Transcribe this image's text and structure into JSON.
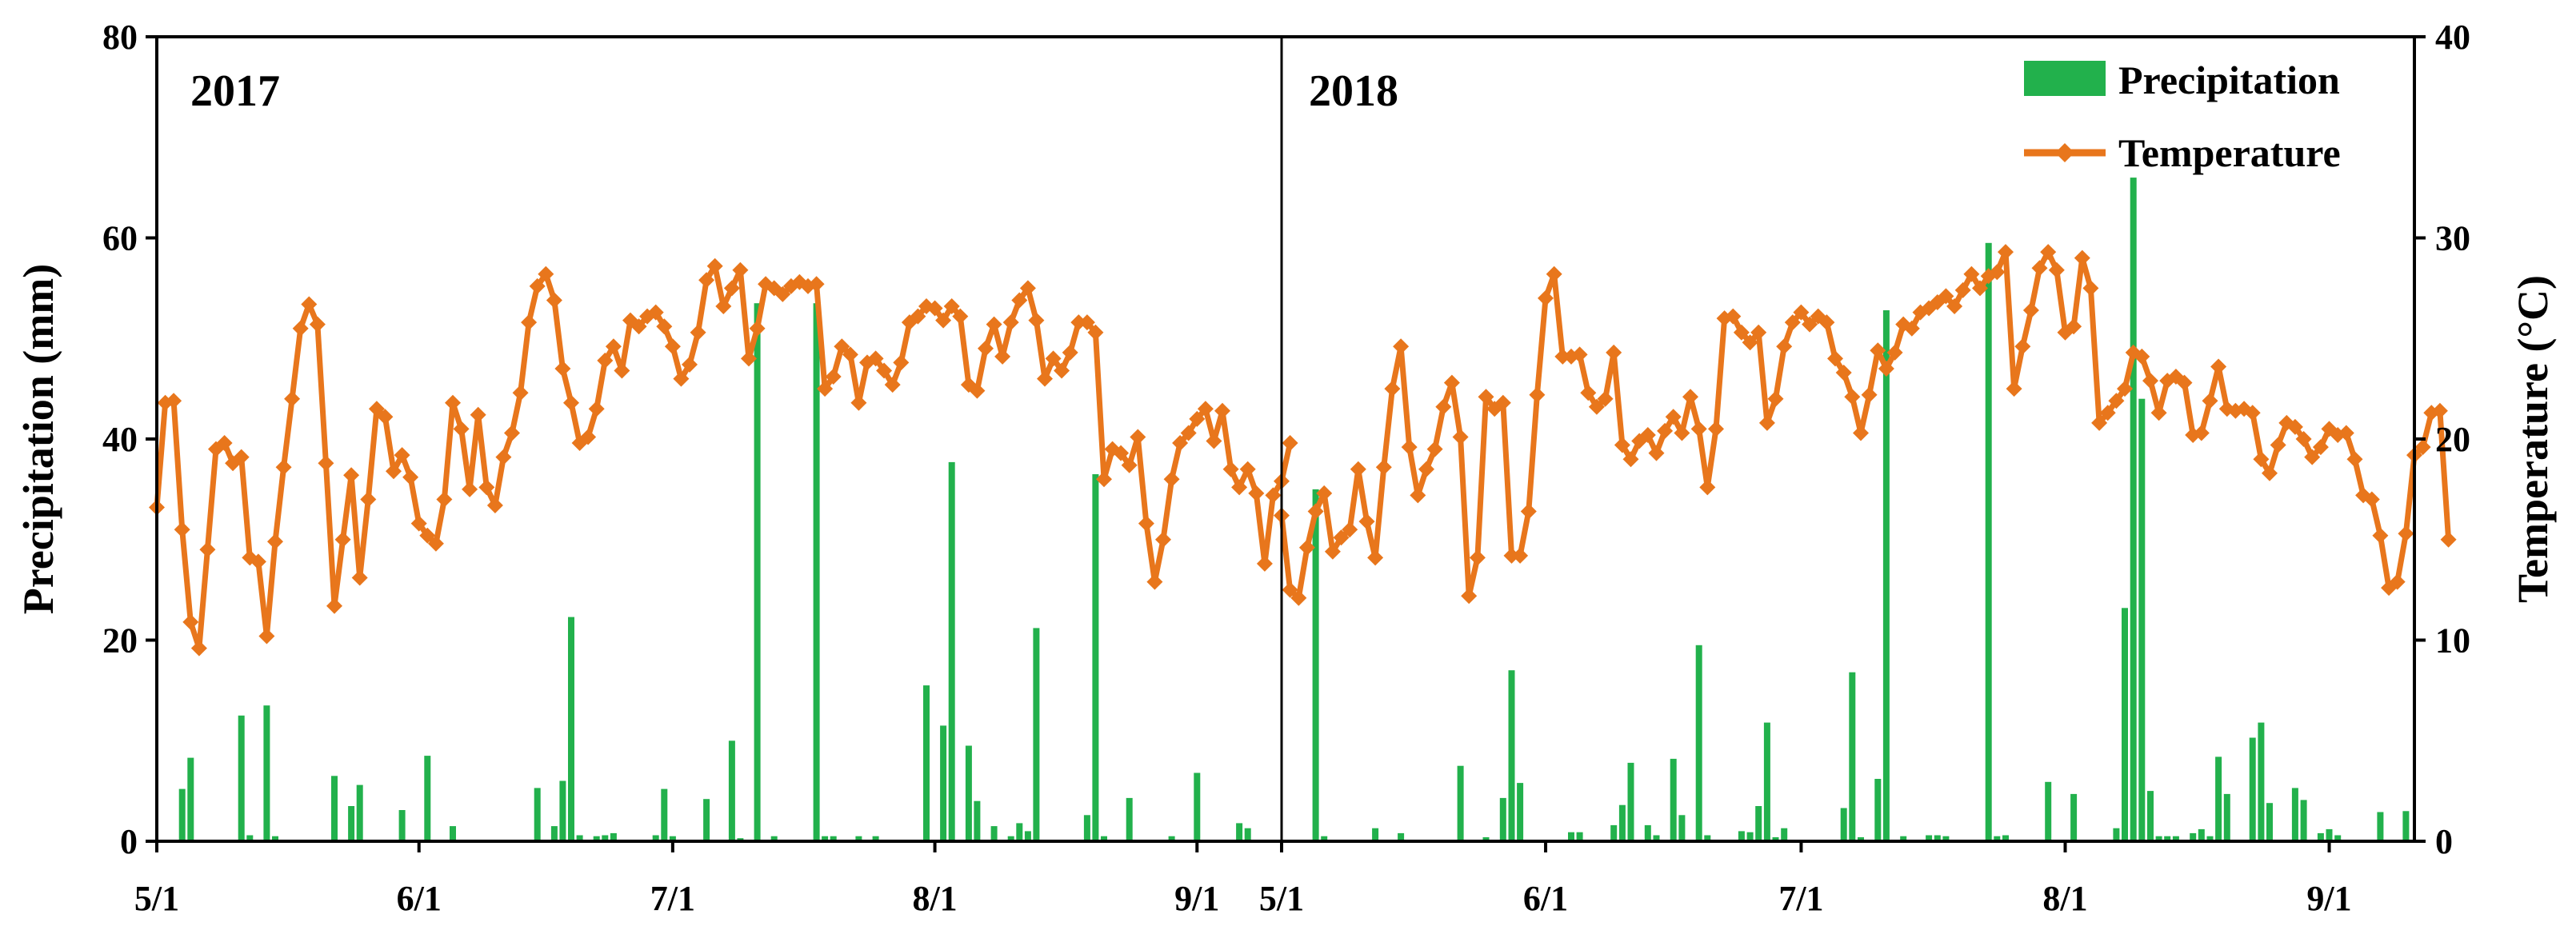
{
  "chart_data": {
    "type": "bar+line",
    "left_axis": {
      "label": "Precipitation (mm)",
      "ylim": [
        0,
        80
      ],
      "ticks": [
        "0",
        "20",
        "40",
        "60",
        "80"
      ]
    },
    "right_axis": {
      "label": "Temperature (°C)",
      "ylim": [
        0,
        40
      ],
      "ticks": [
        "0",
        "10",
        "20",
        "30",
        "40"
      ]
    },
    "legend": {
      "placement": "top-right",
      "precipitation": "Precipitation",
      "temperature": "Temperature"
    },
    "colors": {
      "precipitation": "#22b14c",
      "temperature": "#e8761c"
    },
    "panels": [
      {
        "year_label": "2017",
        "x_ticks": [
          "5/1",
          "6/1",
          "7/1",
          "8/1",
          "9/1"
        ],
        "x_range_days": [
          0,
          133
        ],
        "precipitation": [
          [
            3,
            5.2
          ],
          [
            4,
            8.3
          ],
          [
            10,
            12.5
          ],
          [
            11,
            0.6
          ],
          [
            13,
            13.5
          ],
          [
            14,
            0.5
          ],
          [
            21,
            6.5
          ],
          [
            23,
            3.5
          ],
          [
            24,
            5.6
          ],
          [
            29,
            3.1
          ],
          [
            32,
            8.5
          ],
          [
            35,
            1.5
          ],
          [
            45,
            5.3
          ],
          [
            47,
            1.5
          ],
          [
            48,
            6.0
          ],
          [
            49,
            22.3
          ],
          [
            50,
            0.6
          ],
          [
            52,
            0.5
          ],
          [
            53,
            0.6
          ],
          [
            54,
            0.8
          ],
          [
            59,
            0.6
          ],
          [
            60,
            5.2
          ],
          [
            61,
            0.5
          ],
          [
            65,
            4.2
          ],
          [
            68,
            10.0
          ],
          [
            69,
            0.3
          ],
          [
            71,
            53.5
          ],
          [
            73,
            0.5
          ],
          [
            78,
            53.5
          ],
          [
            79,
            0.5
          ],
          [
            80,
            0.5
          ],
          [
            83,
            0.5
          ],
          [
            85,
            0.5
          ],
          [
            91,
            15.5
          ],
          [
            93,
            11.5
          ],
          [
            94,
            37.7
          ],
          [
            96,
            9.5
          ],
          [
            97,
            4.0
          ],
          [
            99,
            1.5
          ],
          [
            101,
            0.5
          ],
          [
            102,
            1.8
          ],
          [
            103,
            1.0
          ],
          [
            104,
            21.2
          ],
          [
            110,
            2.6
          ],
          [
            111,
            36.5
          ],
          [
            112,
            0.5
          ],
          [
            115,
            4.3
          ],
          [
            120,
            0.5
          ],
          [
            123,
            6.8
          ],
          [
            128,
            1.8
          ],
          [
            129,
            1.3
          ]
        ],
        "temperature": [
          16.6,
          21.8,
          21.9,
          15.5,
          10.9,
          9.6,
          14.5,
          19.5,
          19.8,
          18.8,
          19.1,
          14.1,
          13.9,
          10.2,
          14.9,
          18.6,
          22.0,
          25.5,
          26.7,
          25.7,
          18.8,
          11.7,
          15.0,
          18.2,
          13.1,
          17.0,
          21.5,
          21.1,
          18.4,
          19.2,
          18.1,
          15.8,
          15.2,
          14.8,
          17.0,
          21.8,
          20.5,
          17.5,
          21.2,
          17.6,
          16.7,
          19.1,
          20.3,
          22.3,
          25.8,
          27.6,
          28.2,
          26.9,
          23.5,
          21.8,
          19.8,
          20.1,
          21.5,
          23.9,
          24.6,
          23.4,
          25.9,
          25.6,
          26.1,
          26.3,
          25.6,
          24.6,
          23.0,
          23.7,
          25.3,
          27.9,
          28.6,
          26.6,
          27.5,
          28.4,
          24.0,
          25.5,
          27.7,
          27.5,
          27.2,
          27.6,
          27.8,
          27.6,
          27.7,
          22.5,
          23.1,
          24.6,
          24.2,
          21.8,
          23.8,
          24.0,
          23.4,
          22.7,
          23.8,
          25.8,
          26.1,
          26.6,
          26.5,
          25.9,
          26.6,
          26.1,
          22.7,
          22.4,
          24.5,
          25.7,
          24.1,
          25.8,
          26.9,
          27.5,
          25.9,
          23.0,
          24.0,
          23.4,
          24.3,
          25.8,
          25.8,
          25.3,
          18.0,
          19.5,
          19.3,
          18.7,
          20.1,
          15.8,
          12.9,
          15.0,
          18.0,
          19.8,
          20.3,
          21.0,
          21.5,
          19.9,
          21.4,
          18.5,
          17.6,
          18.5,
          17.3,
          13.8,
          17.2,
          17.9,
          19.8
        ]
      },
      {
        "year_label": "2018",
        "x_ticks": [
          "5/1",
          "6/1",
          "7/1",
          "8/1",
          "9/1"
        ],
        "x_range_days": [
          0,
          133
        ],
        "precipitation": [
          [
            4,
            35.0
          ],
          [
            5,
            0.5
          ],
          [
            11,
            1.3
          ],
          [
            14,
            0.8
          ],
          [
            21,
            7.5
          ],
          [
            24,
            0.4
          ],
          [
            26,
            4.3
          ],
          [
            27,
            17.0
          ],
          [
            28,
            5.8
          ],
          [
            34,
            0.9
          ],
          [
            35,
            0.9
          ],
          [
            39,
            1.6
          ],
          [
            40,
            3.6
          ],
          [
            41,
            7.8
          ],
          [
            43,
            1.6
          ],
          [
            44,
            0.6
          ],
          [
            46,
            8.2
          ],
          [
            47,
            2.6
          ],
          [
            49,
            19.5
          ],
          [
            50,
            0.6
          ],
          [
            54,
            1.0
          ],
          [
            55,
            0.9
          ],
          [
            56,
            3.5
          ],
          [
            57,
            11.8
          ],
          [
            58,
            0.4
          ],
          [
            59,
            1.3
          ],
          [
            66,
            3.3
          ],
          [
            67,
            16.8
          ],
          [
            68,
            0.4
          ],
          [
            70,
            6.2
          ],
          [
            71,
            52.8
          ],
          [
            73,
            0.5
          ],
          [
            76,
            0.6
          ],
          [
            77,
            0.6
          ],
          [
            78,
            0.5
          ],
          [
            83,
            59.5
          ],
          [
            84,
            0.5
          ],
          [
            85,
            0.6
          ],
          [
            90,
            5.9
          ],
          [
            93,
            4.7
          ],
          [
            98,
            1.3
          ],
          [
            99,
            23.2
          ],
          [
            100,
            66.0
          ],
          [
            101,
            44.0
          ],
          [
            102,
            5.0
          ],
          [
            103,
            0.5
          ],
          [
            104,
            0.5
          ],
          [
            105,
            0.5
          ],
          [
            107,
            0.8
          ],
          [
            108,
            1.2
          ],
          [
            109,
            0.5
          ],
          [
            110,
            8.4
          ],
          [
            111,
            4.7
          ],
          [
            114,
            10.3
          ],
          [
            115,
            11.8
          ],
          [
            116,
            3.8
          ],
          [
            119,
            5.3
          ],
          [
            120,
            4.1
          ],
          [
            122,
            0.8
          ],
          [
            123,
            1.2
          ],
          [
            124,
            0.6
          ],
          [
            129,
            2.9
          ],
          [
            132,
            3.0
          ]
        ],
        "temperature": [
          16.2,
          12.5,
          12.1,
          14.6,
          16.4,
          17.3,
          14.4,
          15.1,
          15.5,
          18.5,
          15.9,
          14.1,
          18.6,
          22.5,
          24.6,
          19.6,
          17.2,
          18.5,
          19.5,
          21.6,
          22.8,
          20.1,
          12.2,
          14.1,
          22.1,
          21.5,
          21.8,
          14.2,
          14.2,
          16.4,
          22.2,
          27.0,
          28.2,
          24.1,
          24.1,
          24.2,
          22.3,
          21.6,
          22.0,
          24.3,
          19.7,
          19.0,
          19.9,
          20.2,
          19.3,
          20.4,
          21.1,
          20.3,
          22.1,
          20.5,
          17.6,
          20.5,
          26.0,
          26.1,
          25.3,
          24.8,
          25.3,
          20.8,
          22.0,
          24.6,
          25.8,
          26.3,
          25.7,
          26.1,
          25.8,
          24.0,
          23.3,
          22.1,
          20.3,
          22.2,
          24.4,
          23.5,
          24.3,
          25.7,
          25.5,
          26.3,
          26.5,
          26.8,
          27.1,
          26.6,
          27.4,
          28.2,
          27.5,
          28.1,
          28.3,
          29.3,
          22.5,
          24.6,
          26.4,
          28.5,
          29.3,
          28.4,
          25.3,
          25.6,
          29.0,
          27.5,
          20.8,
          21.3,
          21.9,
          22.5,
          24.3,
          24.1,
          22.9,
          21.3,
          22.9,
          23.1,
          22.8,
          20.2,
          20.3,
          21.9,
          23.6,
          21.5,
          21.4,
          21.5,
          21.3,
          19.0,
          18.3,
          19.7,
          20.8,
          20.6,
          20.0,
          19.1,
          19.6,
          20.5,
          20.2,
          20.3,
          19.0,
          17.2,
          17.0,
          15.2,
          12.6,
          12.9,
          15.3,
          19.2,
          19.6,
          21.3,
          21.4,
          15.0
        ]
      }
    ]
  }
}
